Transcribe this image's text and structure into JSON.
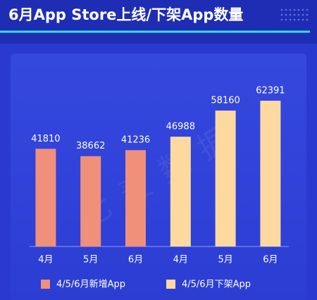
{
  "chart_data": {
    "type": "bar",
    "title": "6月App Store上线/下架App数量",
    "watermark": "七麦数据",
    "categories": [
      "4月",
      "5月",
      "6月",
      "4月",
      "5月",
      "6月"
    ],
    "series": [
      {
        "name": "4/5/6月新增App",
        "color": "#f0907a",
        "values": [
          41810,
          38662,
          41236,
          null,
          null,
          null
        ]
      },
      {
        "name": "4/5/6月下架App",
        "color": "#fdd9a0",
        "values": [
          null,
          null,
          null,
          46988,
          58160,
          62391
        ]
      }
    ]
  }
}
